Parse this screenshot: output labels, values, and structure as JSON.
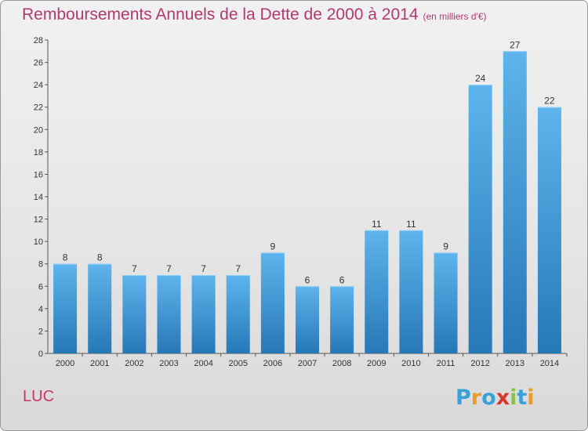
{
  "header": {
    "title": "Remboursements Annuels de la Dette de 2000 à 2014",
    "subtitle": "(en milliers d'€)"
  },
  "footer": {
    "place": "LUC",
    "logo_text": "Proxiti",
    "logo_colors": [
      "#3aa0d8",
      "#e89a2b",
      "#3aa0d8",
      "#d9392b",
      "#8bc34a",
      "#3aa0d8",
      "#e89a2b"
    ]
  },
  "chart_data": {
    "type": "bar",
    "categories": [
      "2000",
      "2001",
      "2002",
      "2003",
      "2004",
      "2005",
      "2006",
      "2007",
      "2008",
      "2009",
      "2010",
      "2011",
      "2012",
      "2013",
      "2014"
    ],
    "values": [
      8,
      8,
      7,
      7,
      7,
      7,
      9,
      6,
      6,
      11,
      11,
      9,
      24,
      27,
      22
    ],
    "ylim": [
      0,
      28
    ],
    "yticks": [
      0,
      2,
      4,
      6,
      8,
      10,
      12,
      14,
      16,
      18,
      20,
      22,
      24,
      26,
      28
    ],
    "grid": false,
    "bar_colors": {
      "top": "#5eb4ec",
      "bottom": "#2678b6"
    }
  }
}
